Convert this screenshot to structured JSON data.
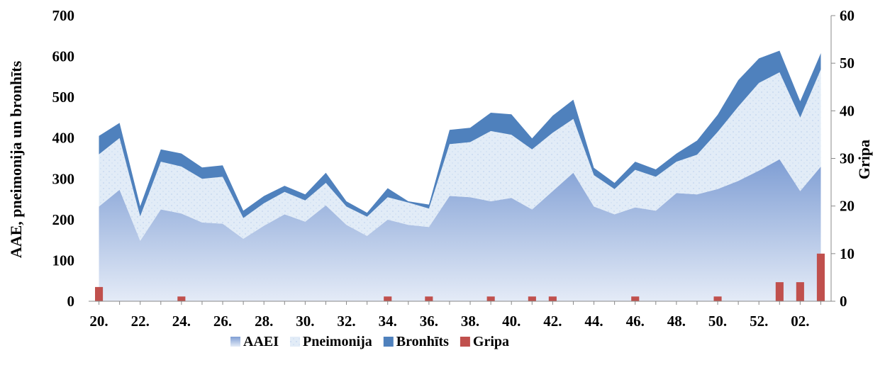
{
  "chart_data": {
    "type": "area",
    "categories": [
      "20.",
      "21.",
      "22.",
      "23.",
      "24.",
      "25.",
      "26.",
      "27.",
      "28.",
      "29.",
      "30.",
      "31.",
      "32.",
      "33.",
      "34.",
      "35.",
      "36.",
      "37.",
      "38.",
      "39.",
      "40.",
      "41.",
      "42.",
      "43.",
      "44.",
      "45.",
      "46.",
      "47.",
      "48.",
      "49.",
      "50.",
      "51.",
      "52.",
      "01.",
      "02.",
      "03."
    ],
    "x_tick_labels": [
      "20.",
      "22.",
      "24.",
      "26.",
      "28.",
      "30.",
      "32.",
      "34.",
      "36.",
      "38.",
      "40.",
      "42.",
      "44.",
      "46.",
      "48.",
      "50.",
      "52.",
      "02."
    ],
    "series": [
      {
        "name": "AAEI",
        "kind": "area",
        "axis": "left",
        "color": "#8fa8d8",
        "values": [
          232,
          273,
          148,
          225,
          215,
          193,
          190,
          153,
          185,
          213,
          195,
          235,
          187,
          160,
          200,
          187,
          182,
          258,
          255,
          245,
          253,
          225,
          270,
          315,
          232,
          213,
          230,
          222,
          265,
          262,
          275,
          295,
          320,
          348,
          270,
          330
        ]
      },
      {
        "name": "Pneimonija",
        "kind": "area",
        "axis": "left",
        "color": "#dde9f6",
        "values": [
          128,
          127,
          60,
          117,
          115,
          107,
          115,
          51,
          55,
          55,
          52,
          55,
          45,
          47,
          55,
          55,
          45,
          127,
          135,
          172,
          155,
          147,
          143,
          132,
          77,
          62,
          92,
          83,
          77,
          97,
          140,
          182,
          215,
          213,
          180,
          238
        ]
      },
      {
        "name": "Bronhīts",
        "kind": "area",
        "axis": "left",
        "color": "#4f81bd",
        "values": [
          45,
          37,
          25,
          30,
          32,
          28,
          28,
          18,
          18,
          15,
          15,
          25,
          13,
          10,
          22,
          3,
          10,
          35,
          35,
          45,
          50,
          27,
          42,
          47,
          18,
          15,
          20,
          18,
          20,
          35,
          42,
          65,
          60,
          53,
          40,
          40
        ]
      },
      {
        "name": "Gripa",
        "kind": "bar",
        "axis": "right",
        "color": "#c0504d",
        "values": [
          3,
          0,
          0,
          0,
          1,
          0,
          0,
          0,
          0,
          0,
          0,
          0,
          0,
          0,
          1,
          0,
          1,
          0,
          0,
          1,
          0,
          1,
          1,
          0,
          0,
          0,
          1,
          0,
          0,
          0,
          1,
          0,
          0,
          4,
          4,
          10
        ]
      }
    ],
    "y_left": {
      "label": "AAE, pneimonija un bronhīts",
      "min": 0,
      "max": 700,
      "step": 100,
      "ticks": [
        "0",
        "100",
        "200",
        "300",
        "400",
        "500",
        "600",
        "700"
      ]
    },
    "y_right": {
      "label": "Gripa",
      "min": 0,
      "max": 60,
      "step": 10,
      "ticks": [
        "0",
        "10",
        "20",
        "30",
        "40",
        "50",
        "60"
      ]
    },
    "xlabel": "",
    "grid": false,
    "legend_position": "bottom"
  }
}
